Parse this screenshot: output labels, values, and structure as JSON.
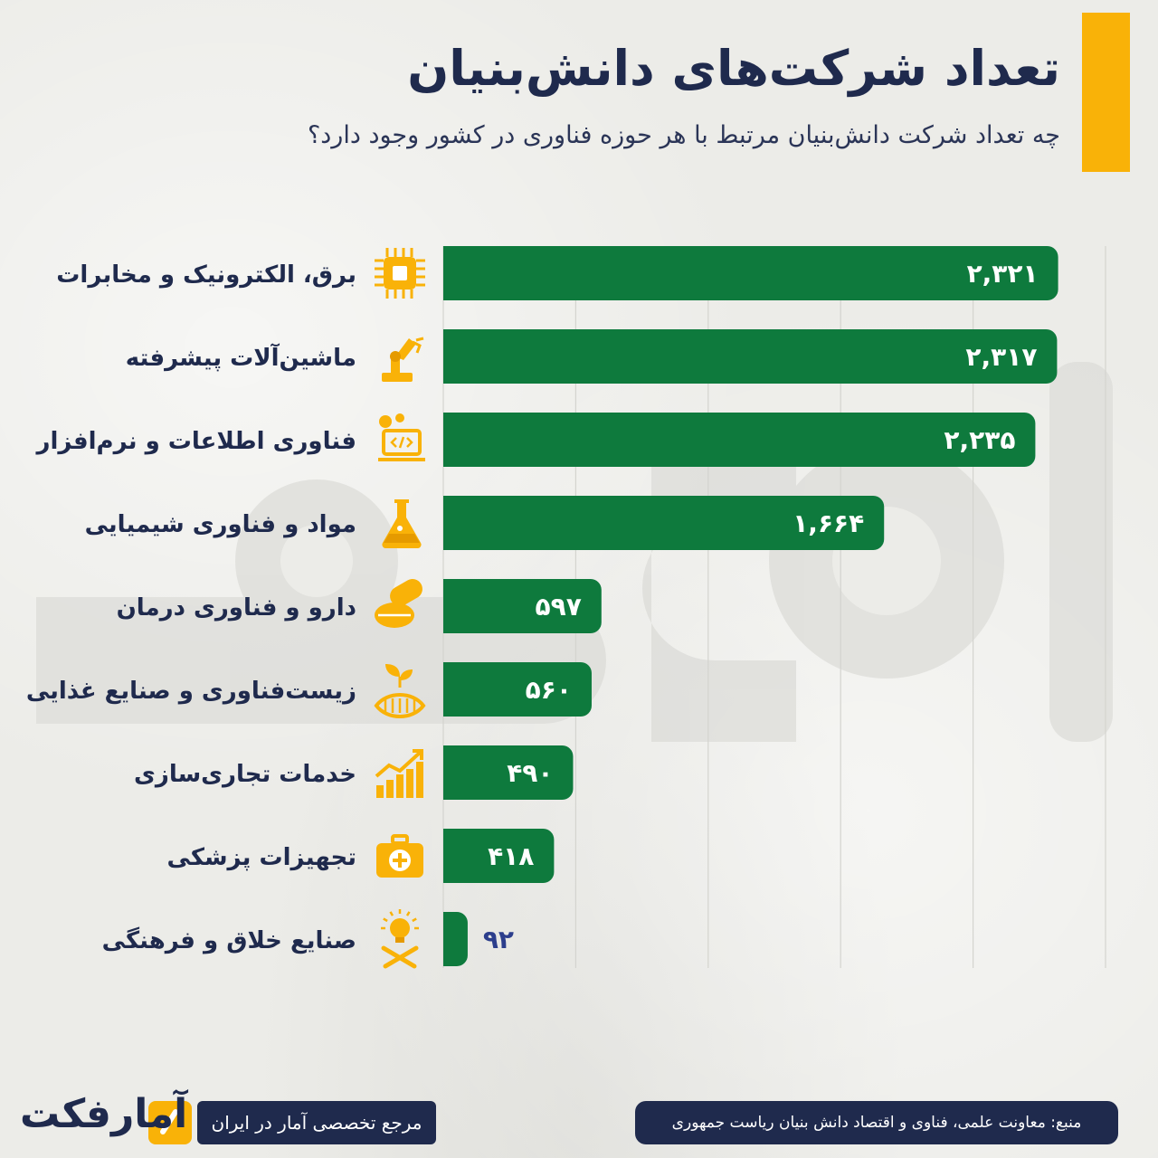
{
  "header": {
    "title": "تعداد شرکت‌های دانش‌بنیان",
    "subtitle": "چه تعداد شرکت دانش‌بنیان مرتبط با هر حوزه فناوری در کشور وجود دارد؟"
  },
  "colors": {
    "bar": "#0e7a3d",
    "accent": "#f9b208",
    "navy": "#1f2a4d",
    "value_outside": "#2c3e8c"
  },
  "chart_data": {
    "type": "bar",
    "orientation": "horizontal",
    "categories": [
      "برق، الکترونیک و مخابرات",
      "ماشین‌آلات پیشرفته",
      "فناوری اطلاعات و نرم‌افزار",
      "مواد و فناوری شیمیایی",
      "دارو و فناوری درمان",
      "زیست‌فناوری و صنایع غذایی",
      "خدمات تجاری‌سازی",
      "تجهیزات پزشکی",
      "صنایع خلاق و فرهنگی"
    ],
    "values": [
      2321,
      2317,
      2235,
      1664,
      597,
      560,
      490,
      418,
      92
    ],
    "value_labels": [
      "۲,۳۲۱",
      "۲,۳۱۷",
      "۲,۲۳۵",
      "۱,۶۶۴",
      "۵۹۷",
      "۵۶۰",
      "۴۹۰",
      "۴۱۸",
      "۹۲"
    ],
    "icons": [
      "circuit-chip-icon",
      "robot-arm-icon",
      "laptop-code-icon",
      "flask-icon",
      "pills-icon",
      "biotech-plant-icon",
      "growth-chart-icon",
      "medical-kit-icon",
      "lightbulb-tools-icon"
    ],
    "xlim": [
      0,
      2500
    ],
    "grid": true,
    "legend": "none"
  },
  "footer": {
    "source": "منبع: معاونت علمی، فناوی و اقتصاد دانش بنیان ریاست جمهوری",
    "tagline": "مرجع تخصصی آمار در ایران",
    "brand": "آمارفکت",
    "brand_icon": "slash-logo-icon"
  }
}
